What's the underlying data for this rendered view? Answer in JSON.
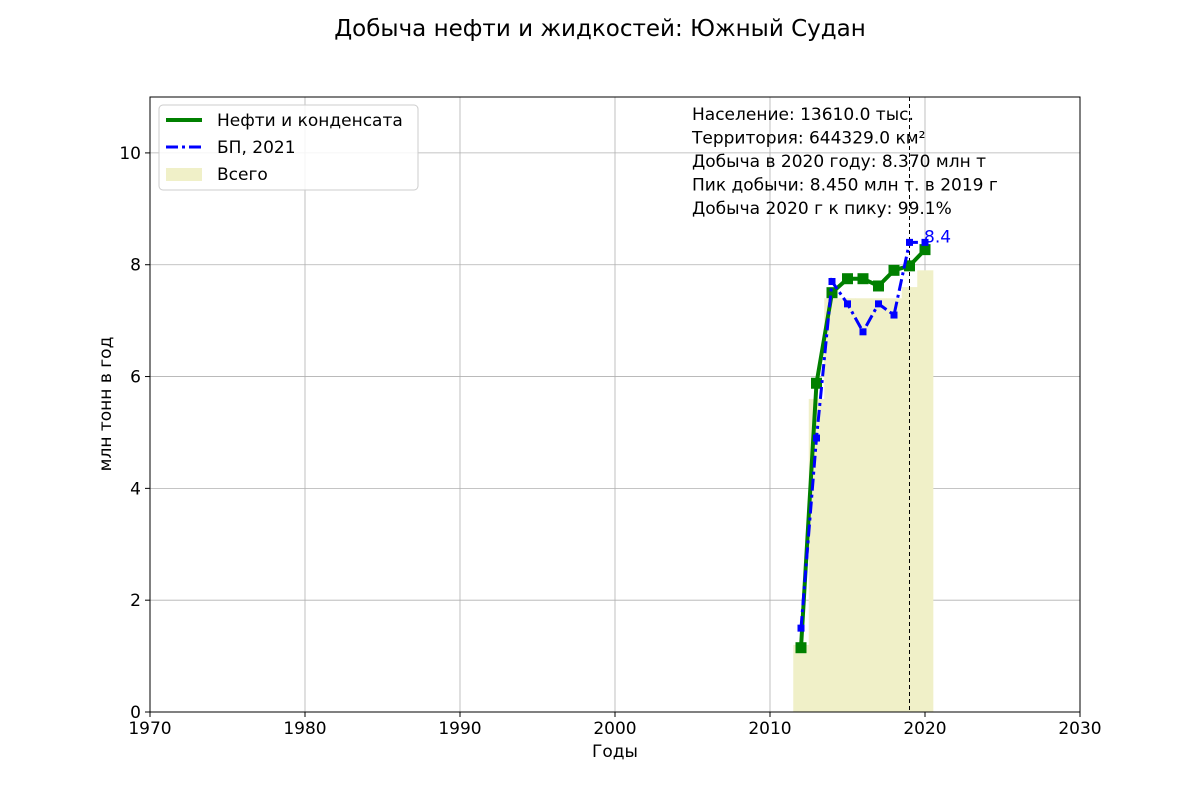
{
  "chart_data": {
    "type": "line",
    "title": "Добыча нефти и жидкостей: Южный Судан",
    "xlabel": "Годы",
    "ylabel": "млн тонн в год",
    "xlim": [
      1970,
      2030
    ],
    "ylim": [
      0,
      11
    ],
    "x_ticks": [
      1970,
      1980,
      1990,
      2000,
      2010,
      2020,
      2030
    ],
    "y_ticks": [
      0,
      2,
      4,
      6,
      8,
      10
    ],
    "grid": true,
    "legend_placement": "upper-left",
    "series": [
      {
        "name": "Нефти и конденсата",
        "kind": "line",
        "color": "#008000",
        "style": "solid-square-markers",
        "x": [
          2012,
          2013,
          2014,
          2015,
          2016,
          2017,
          2018,
          2019,
          2020
        ],
        "values": [
          1.15,
          5.88,
          7.5,
          7.75,
          7.75,
          7.62,
          7.9,
          7.98,
          8.27
        ]
      },
      {
        "name": "БП, 2021",
        "kind": "line",
        "color": "#0000ff",
        "style": "dashdot-small-square-markers",
        "x": [
          2012,
          2013,
          2014,
          2015,
          2016,
          2017,
          2018,
          2019,
          2020
        ],
        "values": [
          1.5,
          4.9,
          7.7,
          7.3,
          6.8,
          7.3,
          7.1,
          8.4,
          8.4
        ]
      },
      {
        "name": "Всего",
        "kind": "bar",
        "color": "#f0f0c8",
        "x": [
          2012,
          2013,
          2014,
          2015,
          2016,
          2017,
          2018,
          2019,
          2020
        ],
        "values": [
          1.2,
          5.6,
          7.4,
          7.4,
          7.4,
          7.4,
          7.4,
          7.6,
          7.9
        ]
      }
    ],
    "peak_line": {
      "x": 2019,
      "color": "#000000"
    },
    "peak_annotation": {
      "x": 2020,
      "y": 8.4,
      "text": "8.4"
    },
    "info_lines": [
      "Население: 13610.0 тыс.",
      "Территория: 644329.0 км²",
      "Добыча в 2020 году: 8.370 млн т",
      "Пик добычи: 8.450 млн т. в 2019 г",
      "Добыча 2020 г к пику: 99.1%"
    ]
  }
}
